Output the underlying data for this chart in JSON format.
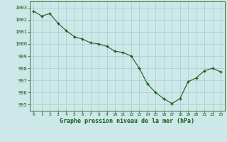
{
  "x": [
    0,
    1,
    2,
    3,
    4,
    5,
    6,
    7,
    8,
    9,
    10,
    11,
    12,
    13,
    14,
    15,
    16,
    17,
    18,
    19,
    20,
    21,
    22,
    23
  ],
  "y": [
    1002.7,
    1002.3,
    1002.5,
    1001.7,
    1001.1,
    1000.6,
    1000.4,
    1000.1,
    1000.0,
    999.8,
    999.4,
    999.3,
    999.0,
    998.0,
    996.7,
    996.0,
    995.5,
    995.1,
    995.5,
    996.9,
    997.2,
    997.8,
    998.0,
    997.7
  ],
  "line_color": "#1a5c1a",
  "marker_color": "#1a5c1a",
  "bg_color": "#cce8e8",
  "grid_color": "#aacccc",
  "text_color": "#1a5c1a",
  "xlabel": "Graphe pression niveau de la mer (hPa)",
  "ylim": [
    994.5,
    1003.5
  ],
  "yticks": [
    995,
    996,
    997,
    998,
    999,
    1000,
    1001,
    1002,
    1003
  ],
  "xticks": [
    0,
    1,
    2,
    3,
    4,
    5,
    6,
    7,
    8,
    9,
    10,
    11,
    12,
    13,
    14,
    15,
    16,
    17,
    18,
    19,
    20,
    21,
    22,
    23
  ],
  "xtick_labels": [
    "0",
    "1",
    "2",
    "3",
    "4",
    "5",
    "6",
    "7",
    "8",
    "9",
    "10",
    "11",
    "12",
    "13",
    "14",
    "15",
    "16",
    "17",
    "18",
    "19",
    "20",
    "21",
    "22",
    "23"
  ]
}
